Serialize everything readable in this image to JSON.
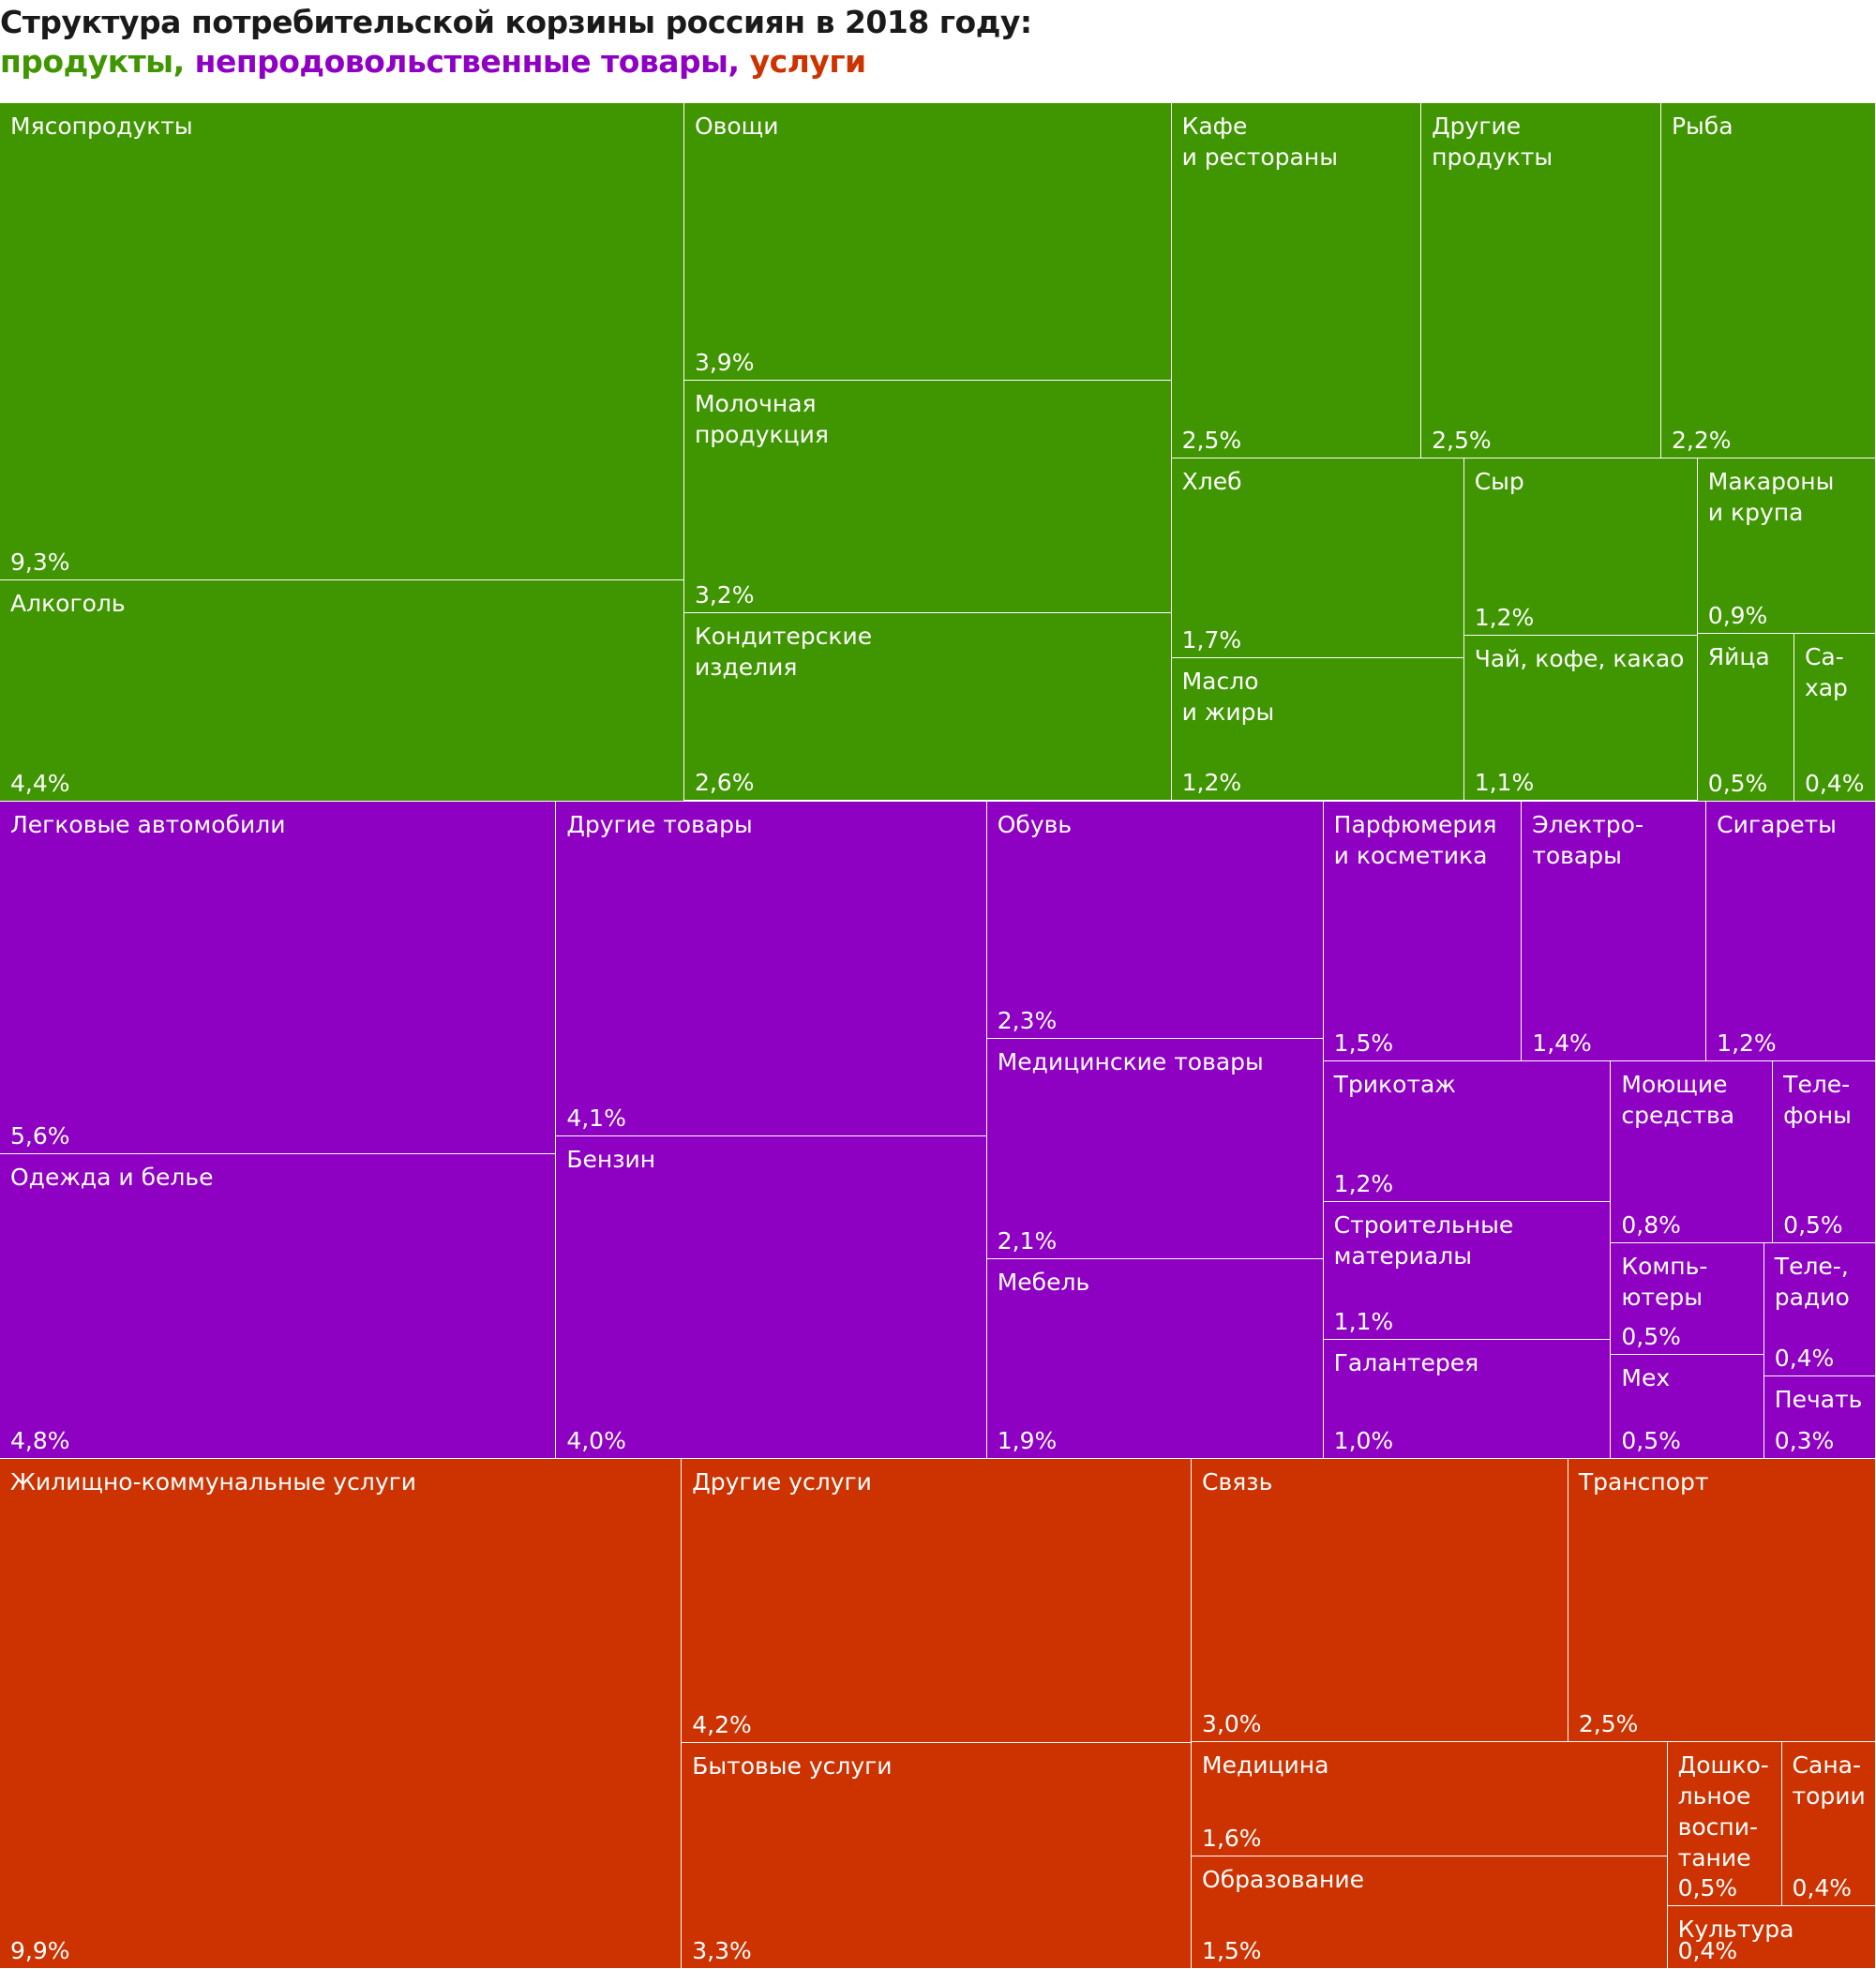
{
  "chart_data": {
    "type": "treemap",
    "title": "Структура потребительской корзины россиян в 2018 году:",
    "separator": ", ",
    "series": [
      {
        "name": "продукты",
        "color": "#3f9600",
        "categories": [
          "Мясопродукты",
          "Алкоголь",
          "Овощи",
          "Молочная\nпродукция",
          "Кондитерские\nизделия",
          "Кафе\nи рестораны",
          "Другие\nпродукты",
          "Рыба",
          "Хлеб",
          "Масло\nи жиры",
          "Сыр",
          "Чай, кофе, какао",
          "Макароны\nи крупа",
          "Яйца",
          "Са-\nхар"
        ],
        "values": [
          9.3,
          4.4,
          3.9,
          3.2,
          2.6,
          2.5,
          2.5,
          2.2,
          1.7,
          1.2,
          1.2,
          1.1,
          0.9,
          0.5,
          0.4
        ],
        "value_labels": [
          "9,3%",
          "4,4%",
          "3,9%",
          "3,2%",
          "2,6%",
          "2,5%",
          "2,5%",
          "2,2%",
          "1,7%",
          "1,2%",
          "1,2%",
          "1,1%",
          "0,9%",
          "0,5%",
          "0,4%"
        ]
      },
      {
        "name": "непродовольственные товары",
        "color": "#8e00c2",
        "categories": [
          "Легковые автомобили",
          "Одежда и белье",
          "Другие товары",
          "Бензин",
          "Обувь",
          "Медицинские товары",
          "Мебель",
          "Парфюмерия\nи косметика",
          "Электро-\nтовары",
          "Сигареты",
          "Трикотаж",
          "Строительные\nматериалы",
          "Галантерея",
          "Моющие\nсредства",
          "Теле-\nфоны",
          "Компь-\nютеры",
          "Мех",
          "Теле-,\nрадио",
          "Печать"
        ],
        "values": [
          5.6,
          4.8,
          4.1,
          4.0,
          2.3,
          2.1,
          1.9,
          1.5,
          1.4,
          1.2,
          1.2,
          1.1,
          1.0,
          0.8,
          0.5,
          0.5,
          0.5,
          0.4,
          0.3
        ],
        "value_labels": [
          "5,6%",
          "4,8%",
          "4,1%",
          "4,0%",
          "2,3%",
          "2,1%",
          "1,9%",
          "1,5%",
          "1,4%",
          "1,2%",
          "1,2%",
          "1,1%",
          "1,0%",
          "0,8%",
          "0,5%",
          "0,5%",
          "0,5%",
          "0,4%",
          "0,3%"
        ]
      },
      {
        "name": "услуги",
        "color": "#cc3300",
        "categories": [
          "Жилищно-коммунальные услуги",
          "Другие услуги",
          "Бытовые услуги",
          "Связь",
          "Транспорт",
          "Медицина",
          "Образование",
          "Дошко-\nльное\nвоспи-\nтание",
          "Сана-\nтории",
          "Культура"
        ],
        "values": [
          9.9,
          4.2,
          3.3,
          3.0,
          2.5,
          1.6,
          1.5,
          0.5,
          0.4,
          0.4
        ],
        "value_labels": [
          "9,9%",
          "4,2%",
          "3,3%",
          "3,0%",
          "2,5%",
          "1,6%",
          "1,5%",
          "0,5%",
          "0,4%",
          "0,4%"
        ]
      }
    ]
  }
}
